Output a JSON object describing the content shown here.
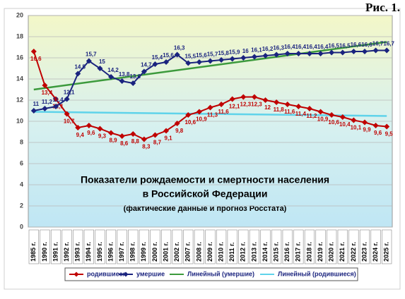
{
  "chart_data": {
    "type": "line",
    "figure_label": "Рис. 1.",
    "title_lines": [
      "Показатели рождаемости и смертности населения",
      "в Российской Федерации"
    ],
    "subtitle": "(фактические данные и прогноз Росстата)",
    "categories": [
      "1985 г.",
      "1990 г.",
      "1991 г.",
      "1992 г.",
      "1993 г.",
      "1994 г.",
      "1995 г.",
      "1996 г.",
      "1997 г.",
      "1998 г.",
      "1999 г.",
      "2000 г.",
      "2001 г.",
      "2002 г.",
      "2007 г.",
      "2008 г.",
      "2009 г.",
      "2010 г.",
      "2011 г.",
      "2012 г.",
      "2013 г.",
      "2014 г.",
      "2015 г.",
      "2016 г.",
      "2017 г.",
      "2018 г.",
      "2019 г.",
      "2020 г.",
      "2021 г.",
      "2022 г.",
      "2023 г.",
      "2024 г.",
      "2025 г."
    ],
    "series": [
      {
        "name": "родившиеся",
        "color": "#c00000",
        "label_side": "below",
        "values": [
          16.6,
          13.4,
          12.1,
          10.7,
          9.4,
          9.6,
          9.3,
          8.9,
          8.6,
          8.8,
          8.3,
          8.7,
          9.1,
          9.8,
          10.6,
          10.9,
          11.3,
          11.6,
          12.1,
          12.3,
          12.3,
          12,
          11.8,
          11.6,
          11.4,
          11.2,
          10.9,
          10.6,
          10.4,
          10.1,
          9.9,
          9.6,
          9.5
        ],
        "value_labels": [
          "16,6",
          "13,4",
          "12,1",
          "10,7",
          "9,4",
          "9,6",
          "9,3",
          "8,9",
          "8,6",
          "8,8",
          "8,3",
          "8,7",
          "9,1",
          "9,8",
          "10,6",
          "10,9",
          "11,3",
          "11,6",
          "12,1",
          "12,3",
          "12,3",
          "12",
          "11,8",
          "11,6",
          "11,4",
          "11,2",
          "10,9",
          "10,6",
          "10,4",
          "10,1",
          "9,9",
          "9,6",
          "9,5"
        ]
      },
      {
        "name": "умершие",
        "color": "#1a237e",
        "label_side": "above",
        "values": [
          11,
          11.2,
          11.4,
          12.1,
          14.5,
          15.7,
          15,
          14.2,
          13.8,
          13.6,
          14.7,
          15.4,
          15.6,
          16.3,
          15.5,
          15.6,
          15.7,
          15.8,
          15.9,
          16,
          16.1,
          16.2,
          16.3,
          16.4,
          16.4,
          16.4,
          16.4,
          16.5,
          16.5,
          16.6,
          16.6,
          16.7,
          16.7
        ],
        "value_labels": [
          "11",
          "11,2",
          "11,4",
          "12,1",
          "14,5",
          "15,7",
          "15",
          "14,2",
          "13,8",
          "13,6",
          "14,7",
          "15,4",
          "15,6",
          "16,3",
          "15,5",
          "15,6",
          "15,7",
          "15,8",
          "15,9",
          "16",
          "16,1",
          "16,2",
          "16,3",
          "16,4",
          "16,4",
          "16,4",
          "16,4",
          "16,5",
          "16,5",
          "16,6",
          "16,6",
          "16,7",
          "16,7"
        ]
      }
    ],
    "trendlines": [
      {
        "name": "Линейный (умершие)",
        "color": "#3c9a3c",
        "values": [
          13,
          17.5
        ]
      },
      {
        "name": "Линейный (родившиеся)",
        "color": "#5fd3ea",
        "values": [
          10.9,
          10.5
        ]
      }
    ],
    "ylim": [
      0,
      20
    ],
    "yticks": [
      0,
      2,
      4,
      6,
      8,
      10,
      12,
      14,
      16,
      18,
      20
    ],
    "grid": true
  }
}
